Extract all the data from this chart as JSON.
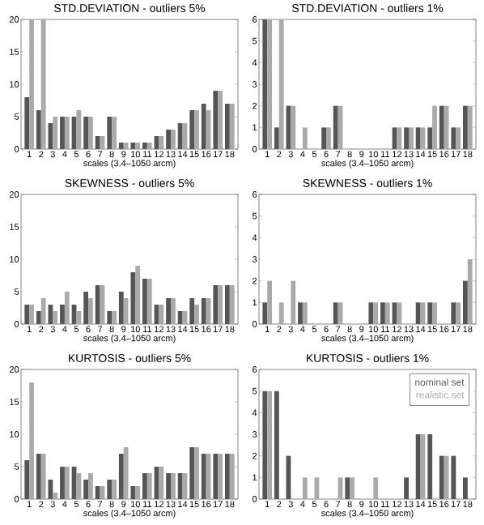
{
  "chart_data": [
    {
      "type": "bar",
      "title": "STD.DEVIATION - outliers 5%",
      "xlabel": "scales (3.4–1050 arcm)",
      "categories": [
        "1",
        "2",
        "3",
        "4",
        "5",
        "6",
        "7",
        "8",
        "9",
        "10",
        "11",
        "12",
        "13",
        "14",
        "15",
        "16",
        "17",
        "18"
      ],
      "ylim": [
        0,
        20
      ],
      "yticks": [
        0,
        5,
        10,
        15,
        20
      ],
      "legend": false,
      "series": [
        {
          "color": "#555555",
          "values": [
            8,
            6,
            4,
            5,
            5,
            5,
            2,
            5,
            1,
            1,
            1,
            2,
            3,
            4,
            6,
            7,
            9,
            7
          ]
        },
        {
          "color": "#aaaaaa",
          "values": [
            20,
            20,
            5,
            5,
            6,
            5,
            2,
            5,
            1,
            1,
            1,
            2,
            3,
            4,
            6,
            6,
            9,
            7
          ]
        }
      ]
    },
    {
      "type": "bar",
      "title": "STD.DEVIATION - outliers 1%",
      "xlabel": "scales (3.4–1050 arcm)",
      "categories": [
        "1",
        "2",
        "3",
        "4",
        "5",
        "6",
        "7",
        "8",
        "9",
        "10",
        "11",
        "12",
        "13",
        "14",
        "15",
        "16",
        "17",
        "18"
      ],
      "ylim": [
        0,
        6
      ],
      "yticks": [
        0,
        1,
        2,
        3,
        4,
        5,
        6
      ],
      "legend": false,
      "series": [
        {
          "color": "#555555",
          "values": [
            6,
            1,
            2,
            0,
            0,
            1,
            2,
            0,
            0,
            0,
            0,
            1,
            1,
            1,
            1,
            2,
            1,
            2
          ]
        },
        {
          "color": "#aaaaaa",
          "values": [
            6,
            6,
            2,
            1,
            0,
            1,
            2,
            0,
            0,
            0,
            0,
            1,
            1,
            1,
            2,
            2,
            1,
            2
          ]
        }
      ]
    },
    {
      "type": "bar",
      "title": "SKEWNESS - outliers 5%",
      "xlabel": "scales (3.4–1050 arcm)",
      "categories": [
        "1",
        "2",
        "3",
        "4",
        "5",
        "6",
        "7",
        "8",
        "9",
        "10",
        "11",
        "12",
        "13",
        "14",
        "15",
        "16",
        "17",
        "18"
      ],
      "ylim": [
        0,
        20
      ],
      "yticks": [
        0,
        5,
        10,
        15,
        20
      ],
      "legend": false,
      "series": [
        {
          "color": "#555555",
          "values": [
            3,
            2,
            3,
            3,
            3,
            5,
            6,
            2,
            5,
            8,
            7,
            3,
            4,
            2,
            4,
            4,
            6,
            6
          ]
        },
        {
          "color": "#aaaaaa",
          "values": [
            3,
            4,
            2,
            5,
            2,
            4,
            6,
            2,
            4,
            9,
            7,
            3,
            4,
            2,
            3,
            4,
            6,
            6
          ]
        }
      ]
    },
    {
      "type": "bar",
      "title": "SKEWNESS - outliers 1%",
      "xlabel": "scales (3.4–1050 arcm)",
      "categories": [
        "1",
        "2",
        "3",
        "4",
        "5",
        "6",
        "7",
        "8",
        "9",
        "10",
        "11",
        "12",
        "13",
        "14",
        "15",
        "16",
        "17",
        "18"
      ],
      "ylim": [
        0,
        6
      ],
      "yticks": [
        0,
        1,
        2,
        3,
        4,
        5,
        6
      ],
      "legend": false,
      "series": [
        {
          "color": "#555555",
          "values": [
            1,
            0,
            0,
            1,
            0,
            0,
            1,
            0,
            0,
            1,
            1,
            1,
            0,
            1,
            1,
            0,
            1,
            2
          ]
        },
        {
          "color": "#aaaaaa",
          "values": [
            2,
            1,
            2,
            1,
            0,
            0,
            1,
            0,
            0,
            1,
            1,
            1,
            0,
            1,
            1,
            0,
            1,
            3
          ]
        }
      ]
    },
    {
      "type": "bar",
      "title": "KURTOSIS - outliers 5%",
      "xlabel": "scales (3.4–1050 arcm)",
      "categories": [
        "1",
        "2",
        "3",
        "4",
        "5",
        "6",
        "7",
        "8",
        "9",
        "10",
        "11",
        "12",
        "13",
        "14",
        "15",
        "16",
        "17",
        "18"
      ],
      "ylim": [
        0,
        20
      ],
      "yticks": [
        0,
        5,
        10,
        15,
        20
      ],
      "legend": false,
      "series": [
        {
          "color": "#555555",
          "values": [
            6,
            7,
            3,
            5,
            5,
            3,
            2,
            3,
            7,
            2,
            4,
            5,
            4,
            4,
            8,
            7,
            7,
            7
          ]
        },
        {
          "color": "#aaaaaa",
          "values": [
            18,
            7,
            1,
            5,
            4,
            4,
            2,
            3,
            8,
            2,
            4,
            5,
            4,
            4,
            8,
            7,
            7,
            7
          ]
        }
      ]
    },
    {
      "type": "bar",
      "title": "KURTOSIS - outliers 1%",
      "xlabel": "scales (3.4–1050 arcm)",
      "categories": [
        "1",
        "2",
        "3",
        "4",
        "5",
        "6",
        "7",
        "8",
        "9",
        "10",
        "11",
        "12",
        "13",
        "14",
        "15",
        "16",
        "17",
        "18"
      ],
      "ylim": [
        0,
        6
      ],
      "yticks": [
        0,
        1,
        2,
        3,
        4,
        5,
        6
      ],
      "legend": "top right",
      "series": [
        {
          "name": "nominal set",
          "color": "#555555",
          "values": [
            5,
            5,
            2,
            0,
            0,
            0,
            0,
            1,
            0,
            0,
            0,
            0,
            1,
            3,
            3,
            2,
            2,
            1
          ]
        },
        {
          "name": "realistic set",
          "color": "#aaaaaa",
          "values": [
            5,
            0,
            0,
            1,
            1,
            0,
            1,
            1,
            0,
            1,
            0,
            0,
            0,
            3,
            0,
            2,
            0,
            0
          ]
        }
      ]
    }
  ]
}
